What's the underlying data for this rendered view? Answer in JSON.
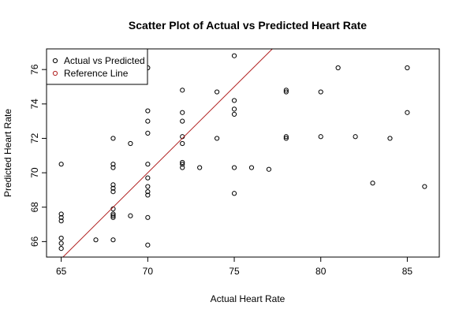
{
  "chart_data": {
    "type": "scatter",
    "title": "Scatter Plot of Actual vs Predicted Heart Rate",
    "xlabel": "Actual Heart Rate",
    "ylabel": "Predicted Heart Rate",
    "xlim": [
      64.15,
      86.85
    ],
    "ylim": [
      65.1,
      77.2
    ],
    "x_ticks": [
      65,
      70,
      75,
      80,
      85
    ],
    "y_ticks": [
      66,
      68,
      70,
      72,
      74,
      76
    ],
    "legend": {
      "placement": "top-left",
      "entries": [
        {
          "label": "Actual vs Predicted",
          "color": "#000000",
          "marker": "circle"
        },
        {
          "label": "Reference Line",
          "color": "#b22222",
          "marker": "circle"
        }
      ]
    },
    "reference_line": {
      "slope": 1,
      "intercept": 0,
      "color": "#b22222"
    },
    "series": [
      {
        "color": "#000000",
        "points": [
          [
            65,
            70.5
          ],
          [
            65,
            67.6
          ],
          [
            65,
            67.4
          ],
          [
            65,
            67.2
          ],
          [
            65,
            66.2
          ],
          [
            65,
            65.9
          ],
          [
            65,
            65.6
          ],
          [
            67,
            66.1
          ],
          [
            68,
            72.0
          ],
          [
            68,
            70.5
          ],
          [
            68,
            70.3
          ],
          [
            68,
            69.3
          ],
          [
            68,
            69.1
          ],
          [
            68,
            68.9
          ],
          [
            68,
            67.9
          ],
          [
            68,
            67.6
          ],
          [
            68,
            67.4
          ],
          [
            68,
            67.5
          ],
          [
            68,
            66.1
          ],
          [
            69,
            71.7
          ],
          [
            69,
            67.5
          ],
          [
            70,
            76.1
          ],
          [
            70,
            73.6
          ],
          [
            70,
            73.0
          ],
          [
            70,
            72.3
          ],
          [
            70,
            70.5
          ],
          [
            70,
            69.7
          ],
          [
            70,
            69.2
          ],
          [
            70,
            68.9
          ],
          [
            70,
            68.7
          ],
          [
            70,
            67.4
          ],
          [
            70,
            65.8
          ],
          [
            72,
            74.8
          ],
          [
            72,
            73.5
          ],
          [
            72,
            73.0
          ],
          [
            72,
            72.1
          ],
          [
            72,
            71.7
          ],
          [
            72,
            70.6
          ],
          [
            72,
            70.5
          ],
          [
            72,
            70.3
          ],
          [
            73,
            70.3
          ],
          [
            74,
            74.7
          ],
          [
            74,
            72.0
          ],
          [
            75,
            76.8
          ],
          [
            75,
            74.2
          ],
          [
            75,
            73.7
          ],
          [
            75,
            73.4
          ],
          [
            75,
            70.3
          ],
          [
            75,
            68.8
          ],
          [
            76,
            70.3
          ],
          [
            77,
            70.2
          ],
          [
            78,
            74.8
          ],
          [
            78,
            74.7
          ],
          [
            78,
            72.1
          ],
          [
            78,
            72.0
          ],
          [
            80,
            74.7
          ],
          [
            80,
            72.1
          ],
          [
            81,
            76.1
          ],
          [
            82,
            72.1
          ],
          [
            83,
            69.4
          ],
          [
            84,
            72.0
          ],
          [
            85,
            76.1
          ],
          [
            85,
            73.5
          ],
          [
            86,
            69.2
          ]
        ]
      }
    ]
  }
}
